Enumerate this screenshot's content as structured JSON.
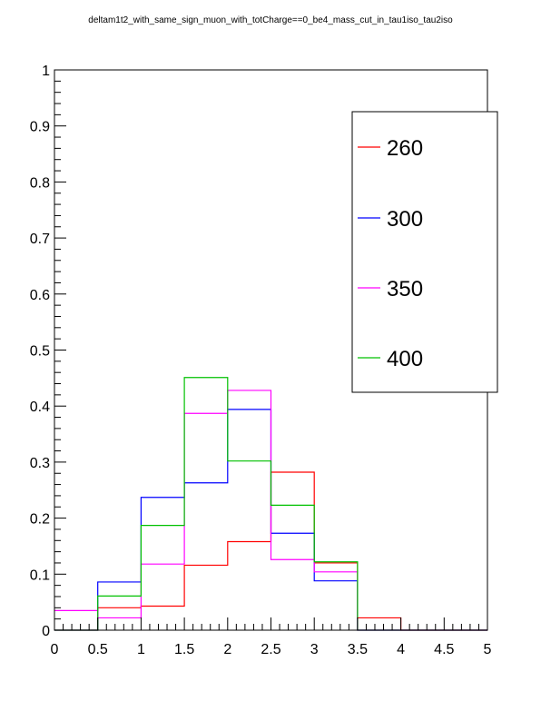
{
  "chart_data": {
    "type": "line",
    "step": true,
    "title": "deltam1t2_with_same_sign_muon_with_totCharge==0_be4_mass_cut_in_tau1iso_tau2iso",
    "xlabel": "",
    "ylabel": "",
    "xlim": [
      0,
      5
    ],
    "ylim": [
      0,
      1
    ],
    "xticks": [
      "0",
      "0.5",
      "1",
      "1.5",
      "2",
      "2.5",
      "3",
      "3.5",
      "4",
      "4.5",
      "5"
    ],
    "yticks": [
      "0",
      "0.1",
      "0.2",
      "0.3",
      "0.4",
      "0.5",
      "0.6",
      "0.7",
      "0.8",
      "0.9",
      "1"
    ],
    "bin_edges": [
      0,
      0.5,
      1,
      1.5,
      2,
      2.5,
      3,
      3.5,
      4,
      4.5,
      5
    ],
    "grid": false,
    "legend_position": "top-right",
    "series": [
      {
        "name": "260",
        "color": "#ff0000",
        "values": [
          0.0,
          0.04,
          0.043,
          0.116,
          0.158,
          0.282,
          0.12,
          0.022,
          0.0,
          0.0
        ]
      },
      {
        "name": "300",
        "color": "#0000ff",
        "values": [
          0.0,
          0.086,
          0.237,
          0.263,
          0.394,
          0.173,
          0.088,
          0.0,
          0.0,
          0.0
        ]
      },
      {
        "name": "350",
        "color": "#ff00ff",
        "values": [
          0.035,
          0.022,
          0.118,
          0.387,
          0.428,
          0.126,
          0.104,
          0.0,
          0.0,
          0.0
        ]
      },
      {
        "name": "400",
        "color": "#00c000",
        "values": [
          0.0,
          0.061,
          0.187,
          0.451,
          0.302,
          0.223,
          0.122,
          0.0,
          0.0,
          0.0
        ]
      }
    ]
  }
}
